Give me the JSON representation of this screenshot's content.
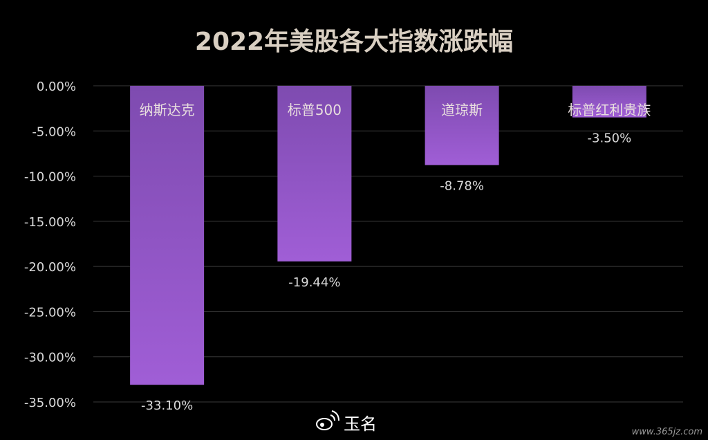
{
  "chart_data": {
    "type": "bar",
    "title": "2022年美股各大指数涨跌幅",
    "categories": [
      "纳斯达克",
      "标普500",
      "道琼斯",
      "标普红利贵族"
    ],
    "values": [
      -33.1,
      -19.44,
      -8.78,
      -3.5
    ],
    "data_labels": [
      "-33.10%",
      "-19.44%",
      "-8.78%",
      "-3.50%"
    ],
    "y_ticks": [
      "0.00%",
      "-5.00%",
      "-10.00%",
      "-15.00%",
      "-20.00%",
      "-25.00%",
      "-30.00%",
      "-35.00%"
    ],
    "y_tick_values": [
      0,
      -5,
      -10,
      -15,
      -20,
      -25,
      -30,
      -35
    ],
    "ylim": [
      -35,
      0
    ],
    "xlabel": "",
    "ylabel": "",
    "grid": true,
    "legend": "none",
    "bar_color_top": "#7e4bb0",
    "bar_color_bottom": "#a05ed6"
  },
  "watermark": {
    "author": "玉名",
    "site": "www.365jz.com"
  }
}
